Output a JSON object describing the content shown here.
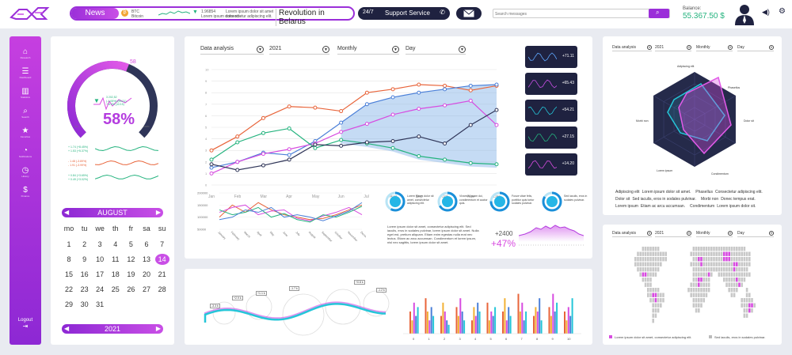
{
  "header": {
    "news_label": "News",
    "ticker": [
      {
        "line1": "BTC",
        "line2": "Bitcoin"
      },
      {
        "line1": "1.96854",
        "line2": "Lorem ipsum dolor sit amet consectetur"
      },
      {
        "line1": "Lorem ipsum dolor sit amet,",
        "line2": "consectetur adipiscing elit."
      }
    ],
    "headline": "Revolution in Belarus",
    "support_hours": "24/7",
    "support_label": "Support Service",
    "search_placeholder": "Search messages",
    "balance_label": "Balance:",
    "balance_value": "55.367.50 $"
  },
  "sidebar": {
    "items": [
      {
        "icon": "home-icon",
        "glyph": "⌂",
        "label": "Research"
      },
      {
        "icon": "list-icon",
        "glyph": "☰",
        "label": "Dashboard"
      },
      {
        "icon": "bar-chart-icon",
        "glyph": "▥",
        "label": "Statistics"
      },
      {
        "icon": "search-icon",
        "glyph": "⌕",
        "label": "Search"
      },
      {
        "icon": "star-icon",
        "glyph": "★",
        "label": "Favorites"
      },
      {
        "icon": "notification-icon",
        "glyph": "◔",
        "label": "Notifications"
      },
      {
        "icon": "timer-icon",
        "glyph": "◷",
        "label": "History"
      },
      {
        "icon": "dollar-icon",
        "glyph": "$",
        "label": "Finance"
      }
    ],
    "logout_label": "Logout"
  },
  "gauge": {
    "value": 58,
    "percent_label": "58%",
    "marker_label": "58",
    "min_label": "0%",
    "max_label": "100%",
    "stats": [
      "3 202,52",
      "(-1.05%) (53.21)",
      "+ 6.4% (113.5)"
    ],
    "sparks": [
      {
        "l1": "+ 1.74 (+8.45%)",
        "l2": "+ 1.53 (+5.37%)"
      },
      {
        "l1": "- 1.48 (-3.89%)",
        "l2": "- 1.91 (-3.99%)"
      },
      {
        "l1": "+ 0.84 (+3.65%)",
        "l2": "+ 0.49 (+3.02%)"
      }
    ]
  },
  "calendar": {
    "month": "AUGUST",
    "year": "2021",
    "weekdays": [
      "mo",
      "tu",
      "we",
      "th",
      "fr",
      "sa",
      "su"
    ],
    "days": [
      "1",
      "2",
      "3",
      "4",
      "5",
      "6",
      "7",
      "8",
      "9",
      "10",
      "11",
      "12",
      "13",
      "14",
      "15",
      "16",
      "17",
      "18",
      "19",
      "20",
      "21",
      "22",
      "23",
      "24",
      "25",
      "26",
      "27",
      "28",
      "29",
      "30",
      "31"
    ],
    "selected": "14"
  },
  "main": {
    "filters": {
      "analysis": "Data analysis",
      "year": "2021",
      "period": "Monthly",
      "granularity": "Day"
    },
    "mini_cards": [
      "+71.11",
      "+65.43",
      "+54.21",
      "+27.15",
      "+14.20"
    ],
    "donuts": [
      "Lorem ipsum dolor sit amet, consectetur adipiscing elit.",
      "Vivamus quam dui, condimentum et auctor quis.",
      "Fusce vitae felis, porttitor quis tortor sodales pulvinar.",
      "Sed iaculis, eros in sodales pulvinar."
    ],
    "paragraph": "Lorem ipsum dolor sit amet, consectetur adipiscing elit. Sed iaculis, eros in sodales pulvinar, lorem ipsum dolor sit amet. Nulla eget est, pretium aliquam. Etiam enim egestas nulla erat nec lectus. Etiam ac arcu accumsan. Condimentum et lorem ipsum, nisl nec sagittis, lorem ipsum dolor sit amet.",
    "delta_value": "+2400",
    "delta_percent": "+47%",
    "wave_labels": [
      "-3.3 k",
      "+2.9 k",
      "+1.1 k",
      "-1.7 k",
      "+0.8 k",
      "-1.2 k"
    ]
  },
  "radar": {
    "filters": {
      "analysis": "Data analysis",
      "year": "2021",
      "period": "Monthly",
      "granularity": "Day"
    },
    "axes": [
      "Adipiscing elit",
      "Phasellus",
      "Dolor sit",
      "Condimentum",
      "Lorem ipsum",
      "Morbi non"
    ],
    "legend": [
      [
        "Adipiscing elit",
        "Lorem ipsum dolor sit amet.",
        "Phasellus",
        "Consectetur adipiscing elit."
      ],
      [
        "Dolor sit",
        "Sed iaculis, eros in sodales pulvinar.",
        "Morbi non",
        "Donec tempus erat."
      ],
      [
        "Lorem ipsum",
        "Etiam ac arcu accumsan.",
        "Condimentum",
        "Lorem ipsum dolor sit."
      ]
    ]
  },
  "world": {
    "filters": {
      "analysis": "Data analysis",
      "year": "2021",
      "period": "Monthly",
      "granularity": "Day"
    },
    "legend": [
      "Lorem ipsum dolor sit amet, consectetur adipiscing elit.",
      "Sed iaculis, eros in sodales pulvinar."
    ]
  },
  "chart_data": [
    {
      "type": "line",
      "categories": [
        "Jan",
        "Feb",
        "Mar",
        "Apr",
        "May",
        "Jun",
        "Jul",
        "Aug",
        "Sep",
        "Oct",
        "Nov",
        "Dec"
      ],
      "yticks": [
        "0",
        "1",
        "2",
        "3",
        "4",
        "5",
        "6",
        "7",
        "8",
        "9",
        "10"
      ],
      "ylim": [
        0,
        10
      ],
      "series": [
        {
          "color": "#e8643a",
          "values": [
            3.0,
            4.2,
            5.8,
            6.8,
            6.7,
            6.4,
            8.0,
            8.3,
            8.7,
            8.6,
            8.2,
            8.6
          ]
        },
        {
          "color": "#4a7fd8",
          "values": [
            1.5,
            2.0,
            2.8,
            2.6,
            3.8,
            5.4,
            7.0,
            7.6,
            8.0,
            8.3,
            8.6,
            8.7
          ]
        },
        {
          "color": "#d74ce0",
          "values": [
            1.0,
            2.0,
            2.7,
            3.1,
            3.6,
            4.6,
            5.3,
            6.1,
            6.6,
            6.9,
            7.3,
            5.2
          ]
        },
        {
          "color": "#24b37e",
          "values": [
            2.2,
            3.7,
            4.5,
            4.9,
            3.2,
            3.9,
            3.6,
            3.2,
            2.5,
            2.2,
            1.9,
            1.8
          ]
        },
        {
          "color": "#2f3558",
          "values": [
            1.8,
            1.3,
            1.7,
            2.2,
            3.5,
            3.4,
            3.7,
            3.8,
            4.2,
            3.6,
            5.2,
            6.5
          ]
        }
      ]
    },
    {
      "type": "line",
      "categories": [
        "January",
        "February",
        "March",
        "April",
        "May",
        "June",
        "July",
        "August",
        "September",
        "October",
        "November",
        "December"
      ],
      "yticks": [
        "200000",
        "150000",
        "100000",
        "50000"
      ],
      "ylim": [
        50000,
        200000
      ],
      "series": [
        {
          "color": "#e8643a",
          "values": [
            100000,
            150000,
            120000,
            160000,
            130000,
            110000,
            100000,
            90000,
            95000,
            110000,
            130000,
            150000
          ]
        },
        {
          "color": "#d74ce0",
          "values": [
            120000,
            140000,
            150000,
            110000,
            125000,
            130000,
            95000,
            85000,
            105000,
            120000,
            140000,
            110000
          ]
        },
        {
          "color": "#24b37e",
          "values": [
            130000,
            110000,
            120000,
            140000,
            100000,
            115000,
            90000,
            80000,
            110000,
            100000,
            120000,
            145000
          ]
        },
        {
          "color": "#4a7fd8",
          "values": [
            90000,
            100000,
            130000,
            120000,
            140000,
            100000,
            110000,
            100000,
            85000,
            105000,
            125000,
            160000
          ]
        }
      ]
    },
    {
      "type": "bar",
      "categories": [
        "0",
        "1",
        "2",
        "3",
        "4",
        "5",
        "6",
        "7",
        "8",
        "9",
        "10"
      ],
      "colors": [
        "#e8643a",
        "#f2b134",
        "#d74ce0",
        "#4a7fd8",
        "#25c6d8"
      ],
      "groups": [
        [
          5,
          3,
          7,
          4,
          6
        ],
        [
          8,
          5,
          3,
          6,
          4
        ],
        [
          4,
          7,
          5,
          3,
          2
        ],
        [
          6,
          4,
          8,
          5,
          3
        ],
        [
          3,
          6,
          4,
          7,
          5
        ],
        [
          7,
          3,
          5,
          4,
          6
        ],
        [
          5,
          8,
          3,
          6,
          4
        ],
        [
          9,
          5,
          7,
          3,
          5
        ],
        [
          4,
          6,
          5,
          8,
          3
        ],
        [
          6,
          4,
          9,
          5,
          7
        ],
        [
          5,
          3,
          6,
          4,
          8
        ]
      ],
      "ylim": [
        0,
        10
      ]
    }
  ]
}
